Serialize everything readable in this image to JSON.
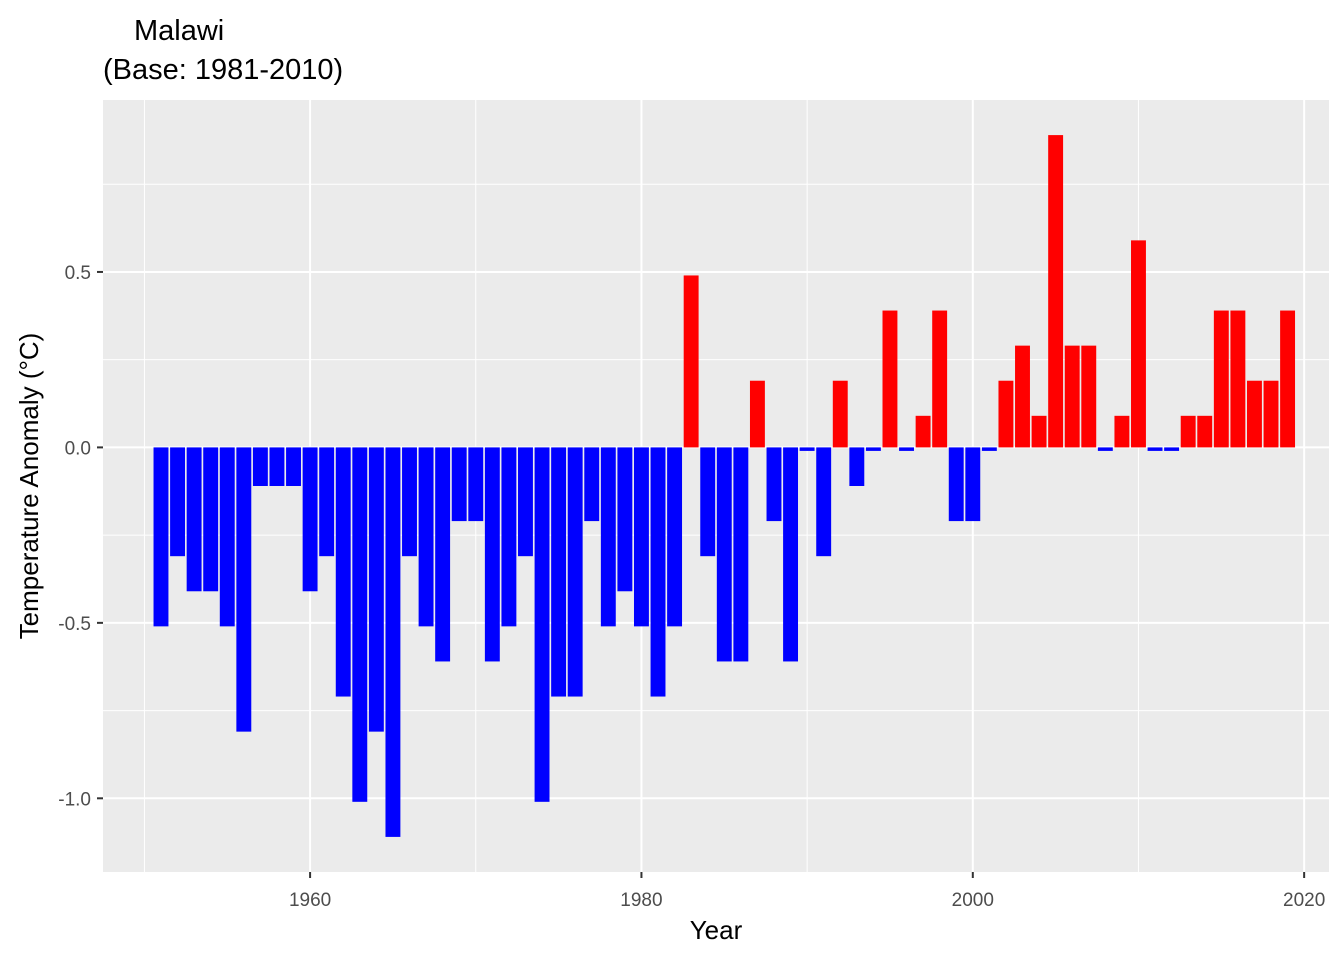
{
  "chart_data": {
    "type": "bar",
    "title": "Malawi",
    "subtitle": "(Base: 1981-2010)",
    "xlabel": "Year",
    "ylabel": "Temperature Anomaly (°C)",
    "xlim": [
      1947.5,
      2021.5
    ],
    "ylim": [
      -1.21,
      0.99
    ],
    "x_ticks": [
      {
        "value": 1960,
        "label": "1960"
      },
      {
        "value": 1980,
        "label": "1980"
      },
      {
        "value": 2000,
        "label": "2000"
      },
      {
        "value": 2020,
        "label": "2020"
      }
    ],
    "y_ticks": [
      {
        "value": -1.0,
        "label": "-1.0"
      },
      {
        "value": -0.5,
        "label": "-0.5"
      },
      {
        "value": 0.0,
        "label": "0.0"
      },
      {
        "value": 0.5,
        "label": "0.5"
      }
    ],
    "grid": true,
    "legend": "none",
    "colors": {
      "positive": "#FF0000",
      "negative": "#0000FF",
      "panel": "#EBEBEB",
      "grid": "#FFFFFF"
    },
    "x": [
      1951,
      1952,
      1953,
      1954,
      1955,
      1956,
      1957,
      1958,
      1959,
      1960,
      1961,
      1962,
      1963,
      1964,
      1965,
      1966,
      1967,
      1968,
      1969,
      1970,
      1971,
      1972,
      1973,
      1974,
      1975,
      1976,
      1977,
      1978,
      1979,
      1980,
      1981,
      1982,
      1983,
      1984,
      1985,
      1986,
      1987,
      1988,
      1989,
      1990,
      1991,
      1992,
      1993,
      1994,
      1995,
      1996,
      1997,
      1998,
      1999,
      2000,
      2001,
      2002,
      2003,
      2004,
      2005,
      2006,
      2007,
      2008,
      2009,
      2010,
      2011,
      2012,
      2013,
      2014,
      2015,
      2016,
      2017,
      2018,
      2019
    ],
    "values": [
      -0.51,
      -0.31,
      -0.41,
      -0.41,
      -0.51,
      -0.81,
      -0.11,
      -0.11,
      -0.11,
      -0.41,
      -0.31,
      -0.71,
      -1.01,
      -0.81,
      -1.11,
      -0.31,
      -0.51,
      -0.61,
      -0.21,
      -0.21,
      -0.61,
      -0.51,
      -0.31,
      -1.01,
      -0.71,
      -0.71,
      -0.21,
      -0.51,
      -0.41,
      -0.51,
      -0.71,
      -0.51,
      0.49,
      -0.31,
      -0.61,
      -0.61,
      0.19,
      -0.21,
      -0.61,
      -0.01,
      -0.31,
      0.19,
      -0.11,
      -0.01,
      0.39,
      -0.01,
      0.09,
      0.39,
      -0.21,
      -0.21,
      -0.01,
      0.19,
      0.29,
      0.09,
      0.89,
      0.29,
      0.29,
      -0.01,
      0.09,
      0.59,
      -0.01,
      -0.01,
      0.09,
      0.09,
      0.39,
      0.39,
      0.19,
      0.19,
      0.39
    ]
  }
}
